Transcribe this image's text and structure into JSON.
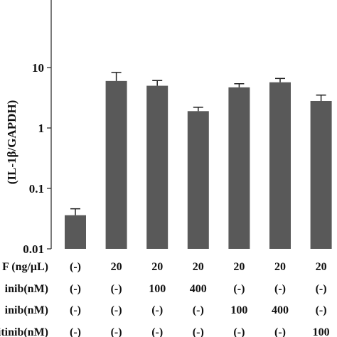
{
  "chart_data": {
    "type": "bar",
    "ylabel": "(IL-1β/GAPDH)",
    "yscale": "log",
    "ylim": [
      0.01,
      100
    ],
    "yticks": [
      {
        "value": 0.01,
        "label": "0.01"
      },
      {
        "value": 0.1,
        "label": "0.1"
      },
      {
        "value": 1,
        "label": "1"
      },
      {
        "value": 10,
        "label": "10"
      }
    ],
    "grid": false,
    "bar_color": "#595959",
    "values": [
      0.036,
      6.0,
      5.0,
      1.9,
      4.7,
      5.7,
      2.8
    ],
    "errors_upper": [
      0.046,
      8.3,
      6.1,
      2.2,
      5.4,
      6.6,
      3.5
    ],
    "condition_rows": [
      {
        "label": "F (ng/μL)",
        "values": [
          "(-)",
          "20",
          "20",
          "20",
          "20",
          "20",
          "20"
        ]
      },
      {
        "label": "inib(nM)",
        "values": [
          "(-)",
          "(-)",
          "100",
          "400",
          "(-)",
          "(-)",
          "(-)"
        ]
      },
      {
        "label": "inib(nM)",
        "values": [
          "(-)",
          "(-)",
          "(-)",
          "(-)",
          "100",
          "400",
          "(-)"
        ]
      },
      {
        "label": "citinib(nM)",
        "values": [
          "(-)",
          "(-)",
          "(-)",
          "(-)",
          "(-)",
          "(-)",
          "100"
        ]
      }
    ]
  }
}
